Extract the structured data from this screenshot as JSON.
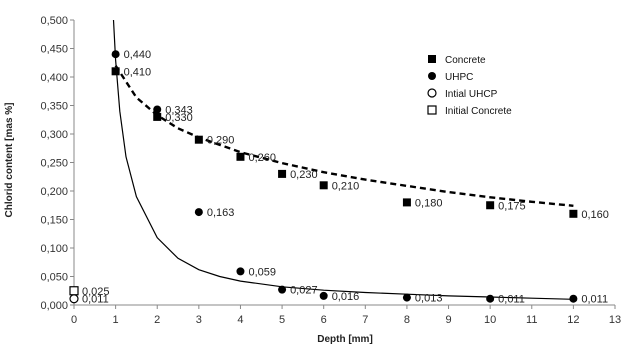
{
  "chart_data": {
    "type": "scatter",
    "xlabel": "Depth [mm]",
    "ylabel": "Chlorid content [mas %]",
    "xlim": [
      0,
      13
    ],
    "ylim": [
      0,
      0.5
    ],
    "x_ticks": [
      "0",
      "1",
      "2",
      "3",
      "4",
      "5",
      "6",
      "7",
      "8",
      "9",
      "10",
      "11",
      "12",
      "13"
    ],
    "y_ticks": [
      "0,000",
      "0,050",
      "0,100",
      "0,150",
      "0,200",
      "0,250",
      "0,300",
      "0,350",
      "0,400",
      "0,450",
      "0,500"
    ],
    "grid": false,
    "legend_position": "top-right",
    "series": [
      {
        "name": "Concrete",
        "marker": "filled-square",
        "x": [
          1,
          2,
          3,
          4,
          5,
          6,
          8,
          10,
          12
        ],
        "y": [
          0.41,
          0.33,
          0.29,
          0.26,
          0.23,
          0.21,
          0.18,
          0.175,
          0.16
        ],
        "labels": [
          "0,410",
          "0,330",
          "0,290",
          "0,260",
          "0,230",
          "0,210",
          "0,180",
          "0,175",
          "0,160"
        ]
      },
      {
        "name": "UHPC",
        "marker": "filled-circle",
        "x": [
          1,
          2,
          3,
          4,
          5,
          6,
          8,
          10,
          12
        ],
        "y": [
          0.44,
          0.343,
          0.163,
          0.059,
          0.027,
          0.016,
          0.013,
          0.011,
          0.011
        ],
        "labels": [
          "0,440",
          "0,343",
          "0,163",
          "0,059",
          "0,027",
          "0,016",
          "0,013",
          "0,011",
          "0,011"
        ]
      },
      {
        "name": "Intial UHCP",
        "marker": "open-circle",
        "x": [
          0
        ],
        "y": [
          0.011
        ],
        "labels": [
          "0,011"
        ]
      },
      {
        "name": "Initial Concrete",
        "marker": "open-square",
        "x": [
          0
        ],
        "y": [
          0.025
        ],
        "labels": [
          "0,025"
        ]
      }
    ],
    "trendlines": [
      {
        "series": "Concrete",
        "style": "dashed",
        "x": [
          1,
          1.5,
          2,
          2.5,
          3,
          4,
          5,
          6,
          7,
          8,
          9,
          10,
          11,
          12
        ],
        "y": [
          0.42,
          0.364,
          0.333,
          0.31,
          0.294,
          0.268,
          0.249,
          0.233,
          0.22,
          0.209,
          0.198,
          0.189,
          0.181,
          0.174
        ]
      },
      {
        "series": "UHPC",
        "style": "solid",
        "x": [
          0.95,
          1,
          1.1,
          1.25,
          1.5,
          2,
          2.5,
          3,
          3.5,
          4,
          5,
          6,
          7,
          8,
          9,
          10,
          11,
          12
        ],
        "y": [
          0.5,
          0.43,
          0.34,
          0.26,
          0.19,
          0.118,
          0.082,
          0.062,
          0.05,
          0.042,
          0.032,
          0.026,
          0.022,
          0.019,
          0.016,
          0.014,
          0.012,
          0.01
        ]
      }
    ],
    "colors": {
      "marker": "#000000",
      "line": "#000000",
      "axis": "#888888"
    }
  }
}
